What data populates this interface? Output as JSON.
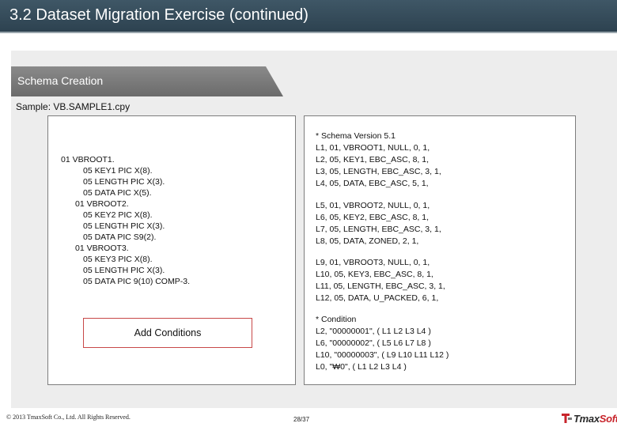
{
  "slide": {
    "title": "3.2 Dataset Migration Exercise (continued)",
    "section_header": "Schema Creation",
    "sample_label": "Sample: VB.SAMPLE1.cpy"
  },
  "copybook": {
    "lines": [
      "01 VBROOT1.",
      "05 KEY1 PIC X(8).",
      "05 LENGTH PIC X(3).",
      "05 DATA PIC X(5).",
      "01 VBROOT2.",
      "05 KEY2 PIC X(8).",
      "05 LENGTH PIC X(3).",
      "05 DATA PIC S9(2).",
      "01 VBROOT3.",
      "05 KEY3 PIC X(8).",
      "05 LENGTH PIC X(3).",
      "05 DATA PIC 9(10) COMP-3."
    ]
  },
  "schema": {
    "lines": [
      "* Schema Version 5.1",
      "L1, 01, VBROOT1, NULL, 0, 1,",
      "L2, 05, KEY1, EBC_ASC, 8, 1,",
      "L3, 05, LENGTH, EBC_ASC, 3, 1,",
      "L4, 05, DATA, EBC_ASC, 5, 1,",
      "L5, 01, VBROOT2, NULL, 0, 1,",
      "L6, 05, KEY2, EBC_ASC, 8, 1,",
      "L7, 05, LENGTH, EBC_ASC, 3, 1,",
      "L8, 05, DATA, ZONED, 2, 1,",
      "L9, 01, VBROOT3, NULL, 0, 1,",
      "L10, 05, KEY3, EBC_ASC, 8, 1,",
      "L11, 05, LENGTH, EBC_ASC, 3, 1,",
      "L12, 05, DATA, U_PACKED, 6, 1,",
      "* Condition",
      "L2, \"00000001\", ( L1 L2 L3 L4 )",
      "L6, \"00000002\", ( L5 L6 L7 L8 )",
      "L10, \"00000003\", ( L9 L10 L11 L12 )",
      "L0, \"₩0\", ( L1 L2 L3 L4 )"
    ]
  },
  "add_conditions_label": "Add Conditions",
  "footer": {
    "copyright": "© 2013 TmaxSoft Co., Ltd. All Rights Reserved.",
    "page": "28/37",
    "logo_prefix": "Tmax",
    "logo_suffix": "Soft"
  },
  "colors": {
    "title_bar": "#2d4250",
    "section_header": "#7a7a7a",
    "button_border": "#c84848",
    "logo_accent": "#c8242b"
  }
}
